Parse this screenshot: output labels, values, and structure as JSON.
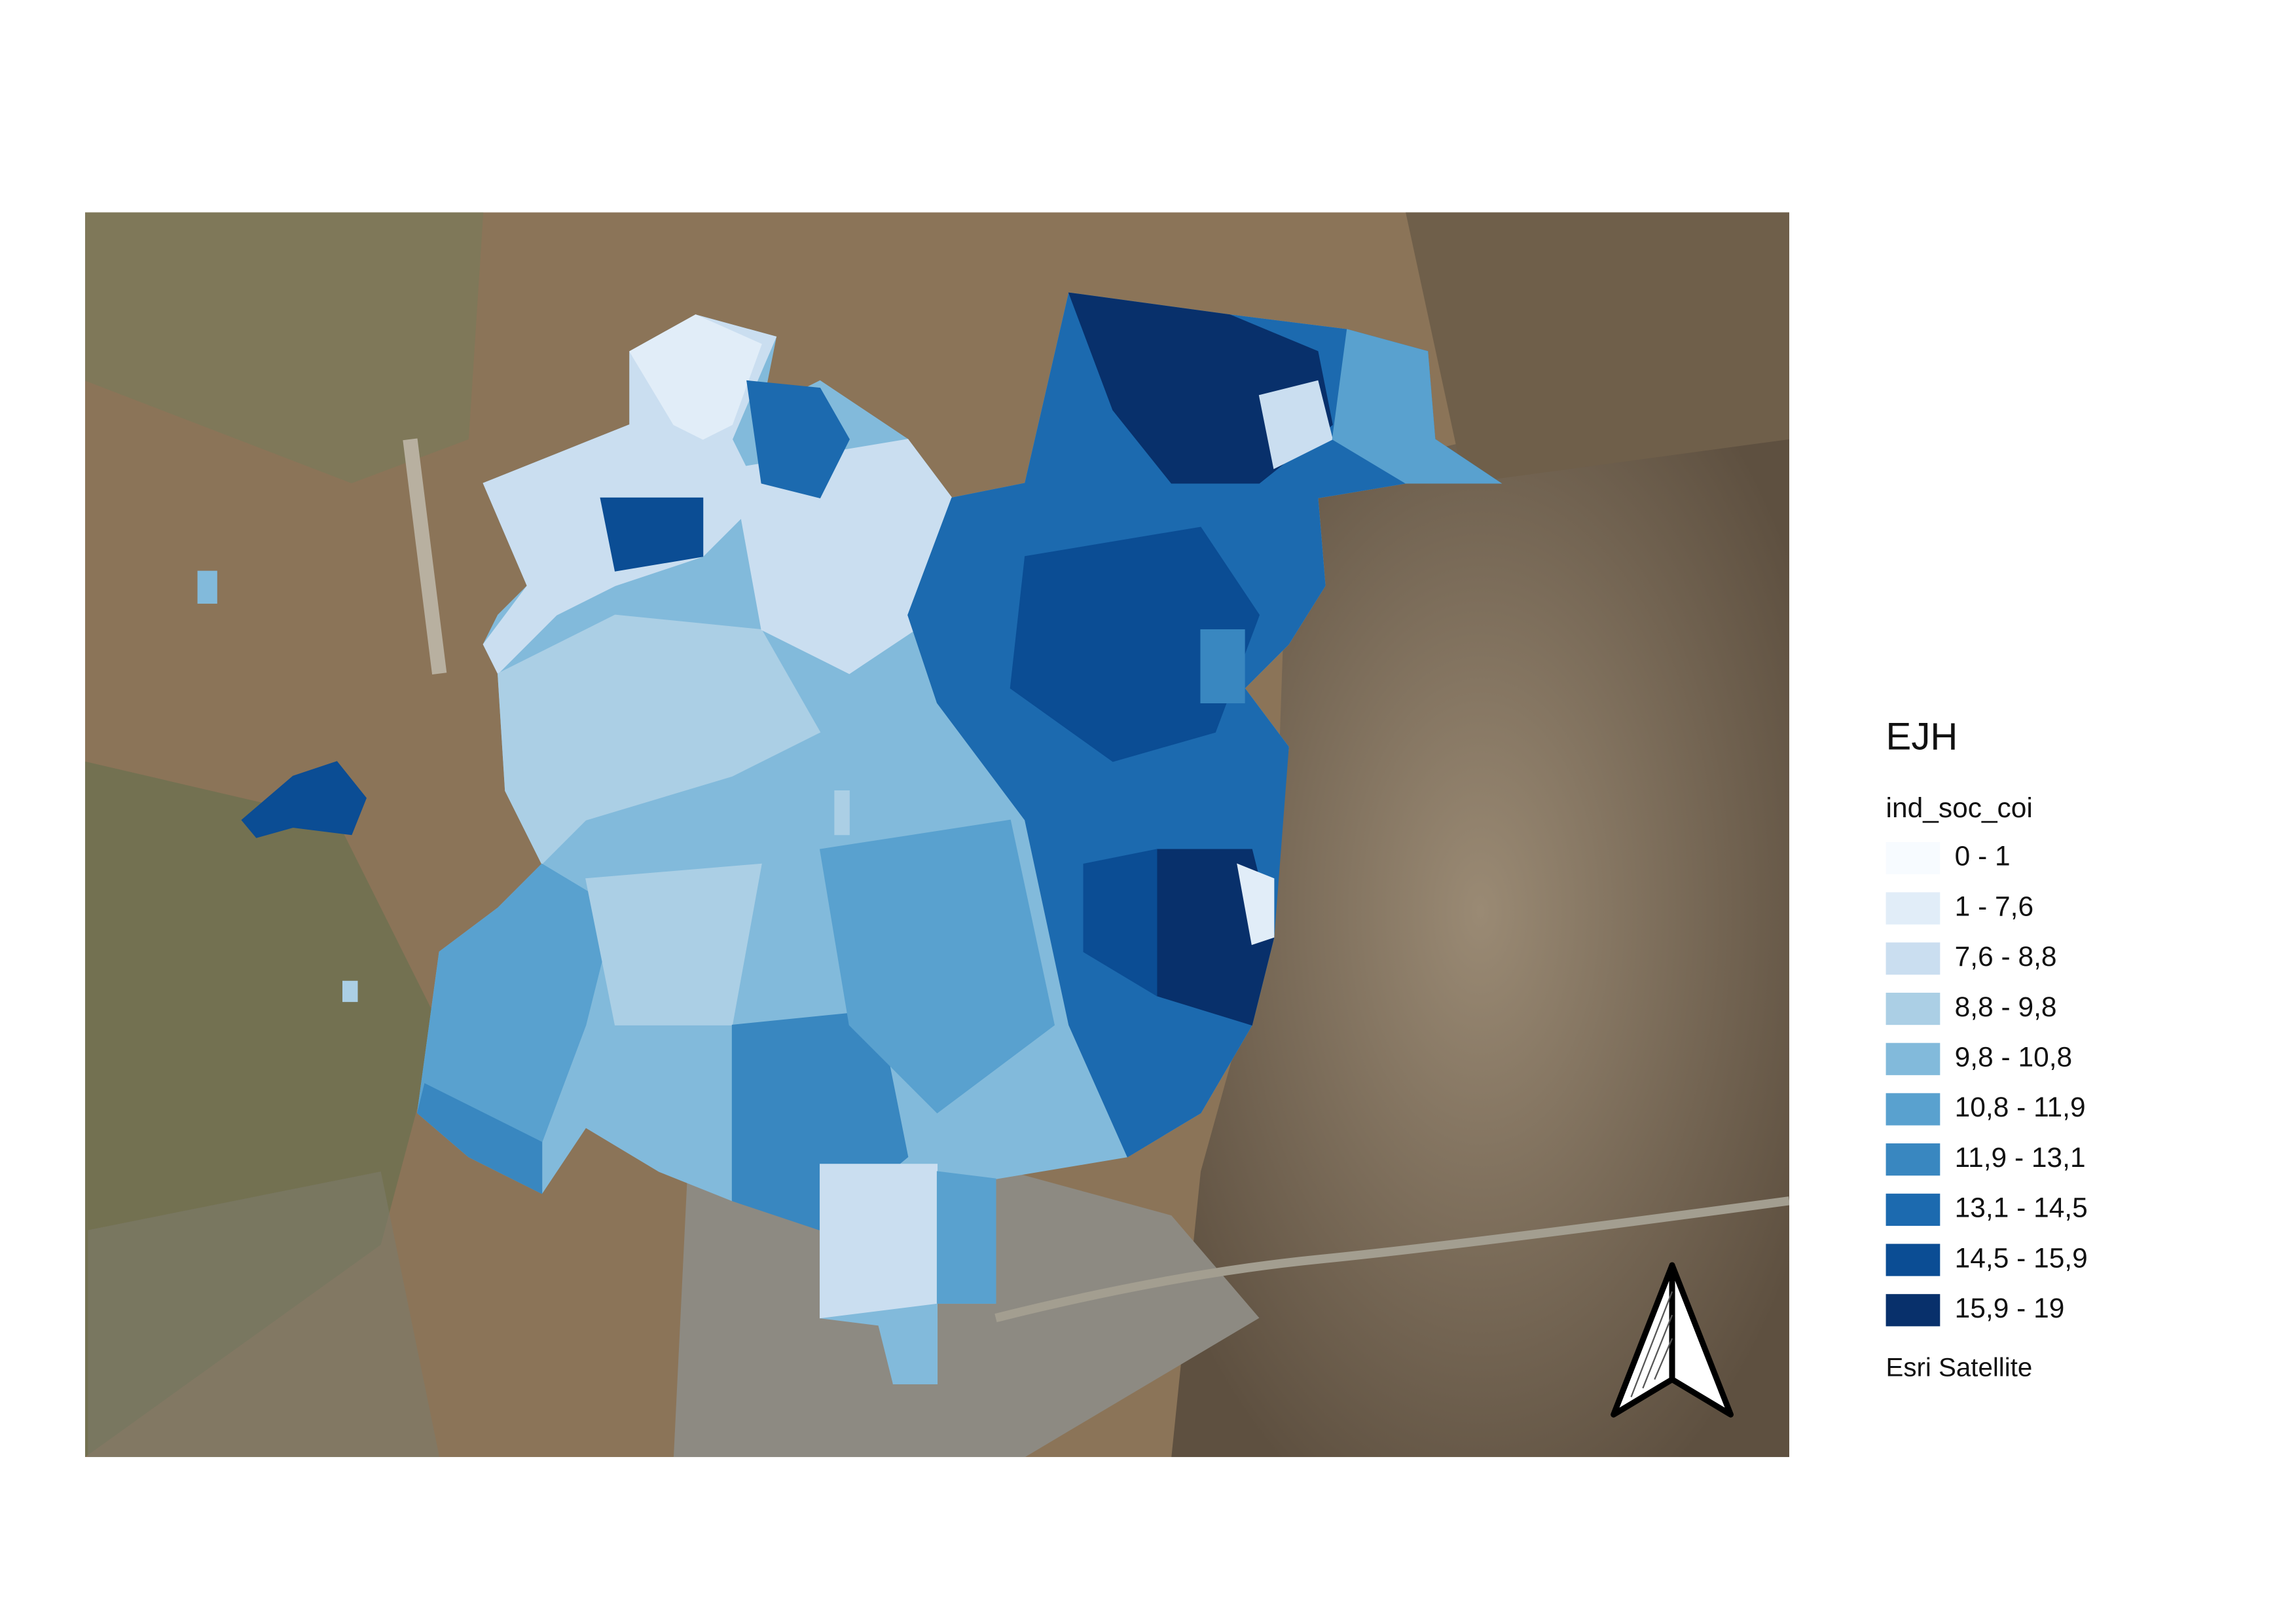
{
  "map": {
    "legend": {
      "title": "EJH",
      "field": "ind_soc_coi",
      "classes": [
        {
          "label": "0 - 1",
          "color": "#f7fbff"
        },
        {
          "label": "1 - 7,6",
          "color": "#e1edf8"
        },
        {
          "label": "7,6 - 8,8",
          "color": "#cadef0"
        },
        {
          "label": "8,8 - 9,8",
          "color": "#abcfe5"
        },
        {
          "label": "9,8 - 10,8",
          "color": "#82badb"
        },
        {
          "label": "10,8 - 11,9",
          "color": "#59a1cf"
        },
        {
          "label": "11,9 - 13,1",
          "color": "#3987c0"
        },
        {
          "label": "13,1 - 14,5",
          "color": "#1c6aaf"
        },
        {
          "label": "14,5 - 15,9",
          "color": "#0b4d94"
        },
        {
          "label": "15,9 - 19",
          "color": "#08306b"
        }
      ],
      "basemap": "Esri Satellite"
    }
  }
}
